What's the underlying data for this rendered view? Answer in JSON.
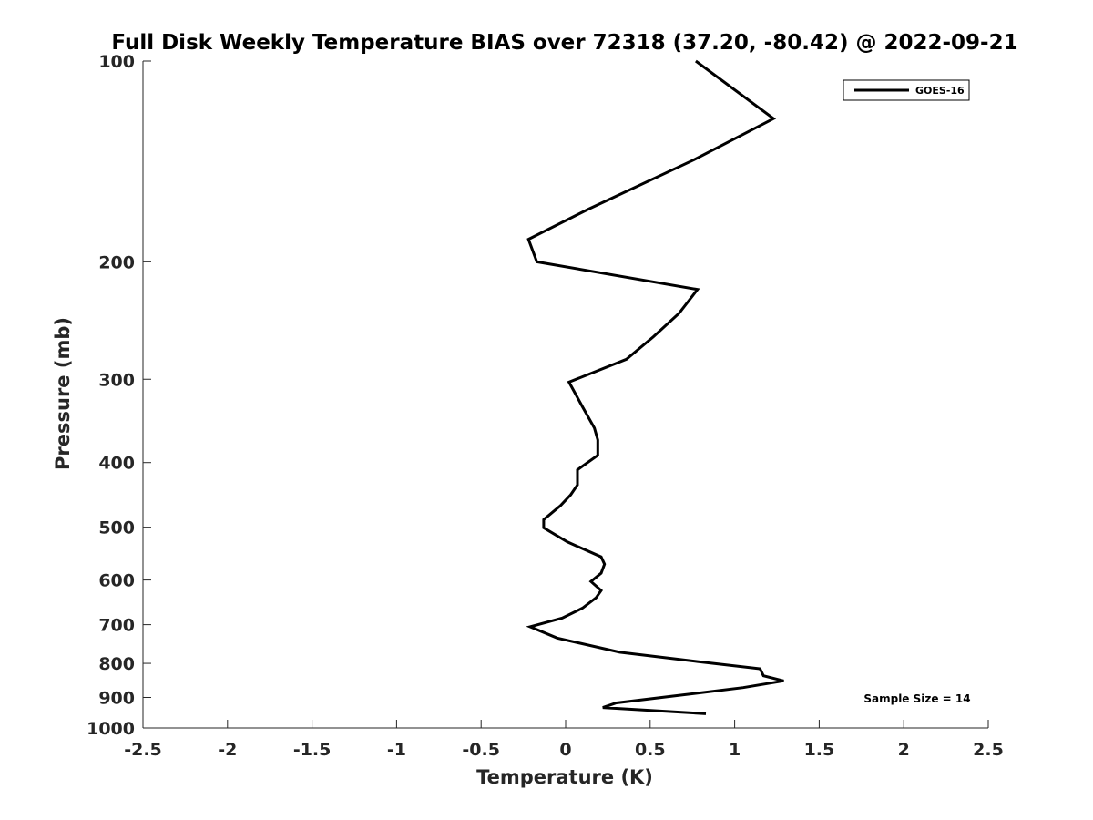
{
  "chart_data": {
    "type": "line",
    "title": "Full Disk Weekly Temperature BIAS over 72318 (37.20, -80.42) @ 2022-09-21",
    "xlabel": "Temperature (K)",
    "ylabel": "Pressure (mb)",
    "xlim": [
      -2.5,
      2.5
    ],
    "ylim": [
      100,
      1000
    ],
    "y_scale": "log",
    "y_reversed": true,
    "grid": false,
    "xticks": [
      -2.5,
      -2,
      -1.5,
      -1,
      -0.5,
      0,
      0.5,
      1,
      1.5,
      2,
      2.5
    ],
    "xtick_labels": [
      "-2.5",
      "-2",
      "-1.5",
      "-1",
      "-0.5",
      "0",
      "0.5",
      "1",
      "1.5",
      "2",
      "2.5"
    ],
    "yticks": [
      100,
      200,
      300,
      400,
      500,
      600,
      700,
      800,
      900,
      1000
    ],
    "ytick_labels": [
      "100",
      "200",
      "300",
      "400",
      "500",
      "600",
      "700",
      "800",
      "900",
      "1000"
    ],
    "legend_position": "top-right",
    "series": [
      {
        "name": "GOES-16",
        "color": "#000000",
        "points": [
          {
            "x": 0.77,
            "p": 100
          },
          {
            "x": 1.23,
            "p": 122
          },
          {
            "x": 0.75,
            "p": 141
          },
          {
            "x": 0.13,
            "p": 167
          },
          {
            "x": -0.22,
            "p": 185
          },
          {
            "x": -0.17,
            "p": 200
          },
          {
            "x": 0.78,
            "p": 220
          },
          {
            "x": 0.67,
            "p": 239
          },
          {
            "x": 0.52,
            "p": 259
          },
          {
            "x": 0.36,
            "p": 280
          },
          {
            "x": 0.02,
            "p": 303
          },
          {
            "x": 0.1,
            "p": 330
          },
          {
            "x": 0.17,
            "p": 355
          },
          {
            "x": 0.19,
            "p": 370
          },
          {
            "x": 0.19,
            "p": 390
          },
          {
            "x": 0.07,
            "p": 410
          },
          {
            "x": 0.07,
            "p": 432
          },
          {
            "x": 0.03,
            "p": 447
          },
          {
            "x": -0.03,
            "p": 464
          },
          {
            "x": -0.13,
            "p": 487
          },
          {
            "x": -0.13,
            "p": 501
          },
          {
            "x": 0.01,
            "p": 526
          },
          {
            "x": 0.21,
            "p": 554
          },
          {
            "x": 0.23,
            "p": 568
          },
          {
            "x": 0.21,
            "p": 586
          },
          {
            "x": 0.15,
            "p": 603
          },
          {
            "x": 0.21,
            "p": 622
          },
          {
            "x": 0.18,
            "p": 638
          },
          {
            "x": 0.1,
            "p": 661
          },
          {
            "x": -0.02,
            "p": 684
          },
          {
            "x": -0.21,
            "p": 705
          },
          {
            "x": -0.05,
            "p": 733
          },
          {
            "x": 0.32,
            "p": 770
          },
          {
            "x": 0.78,
            "p": 795
          },
          {
            "x": 1.15,
            "p": 815
          },
          {
            "x": 1.17,
            "p": 835
          },
          {
            "x": 1.29,
            "p": 850
          },
          {
            "x": 1.05,
            "p": 870
          },
          {
            "x": 0.3,
            "p": 917
          },
          {
            "x": 0.22,
            "p": 932
          },
          {
            "x": 0.83,
            "p": 952
          }
        ]
      }
    ],
    "annotations": [
      "Sample Size = 14"
    ]
  }
}
